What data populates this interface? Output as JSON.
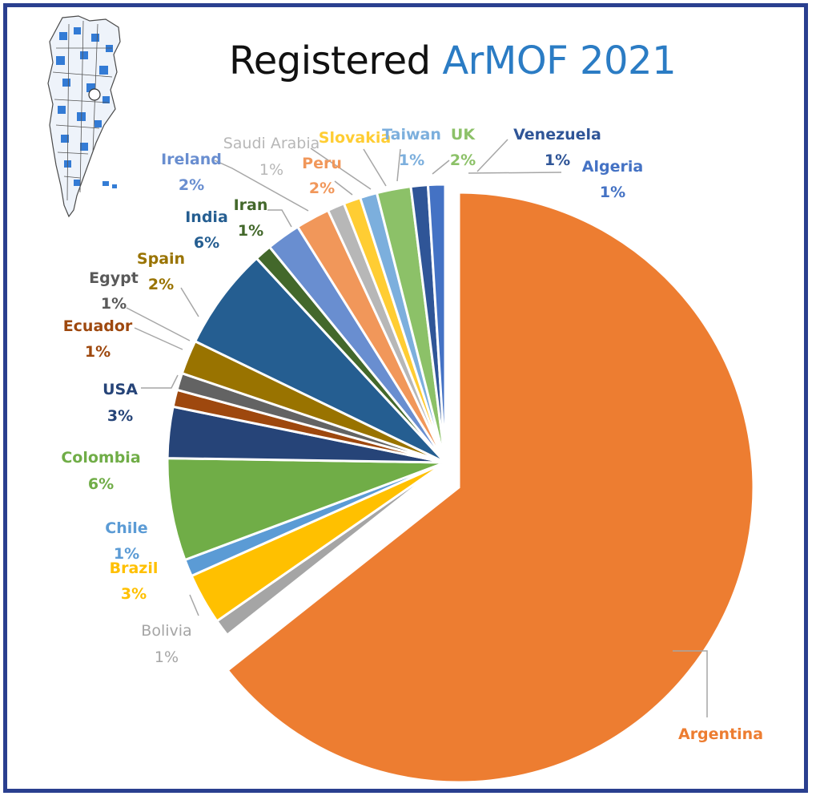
{
  "title": {
    "part1": "Registered",
    "part2": "ArMOF 2021"
  },
  "colors": {
    "frame": "#2a3f8f",
    "title_dark": "#111111",
    "title_accent": "#2b7cc4"
  },
  "logo": {
    "icon": "argentina-map-mof-structure-icon"
  },
  "chart_data": {
    "type": "pie",
    "title": "Registered ArMOF 2021",
    "exploded": "Argentina",
    "slices": [
      {
        "label": "Argentina",
        "value": 65,
        "pct_text": "",
        "color": "#ed7d31"
      },
      {
        "label": "Bolivia",
        "value": 1,
        "pct_text": "1%",
        "color": "#a5a5a5"
      },
      {
        "label": "Brazil",
        "value": 3,
        "pct_text": "3%",
        "color": "#ffc000"
      },
      {
        "label": "Chile",
        "value": 1,
        "pct_text": "1%",
        "color": "#5b9bd5"
      },
      {
        "label": "Colombia",
        "value": 6,
        "pct_text": "6%",
        "color": "#70ad47"
      },
      {
        "label": "USA",
        "value": 3,
        "pct_text": "3%",
        "color": "#264478"
      },
      {
        "label": "Ecuador",
        "value": 1,
        "pct_text": "1%",
        "color": "#9e480e"
      },
      {
        "label": "Egypt",
        "value": 1,
        "pct_text": "1%",
        "color": "#636363"
      },
      {
        "label": "Spain",
        "value": 2,
        "pct_text": "2%",
        "color": "#997300"
      },
      {
        "label": "India",
        "value": 6,
        "pct_text": "6%",
        "color": "#255e91"
      },
      {
        "label": "Iran",
        "value": 1,
        "pct_text": "1%",
        "color": "#43682b"
      },
      {
        "label": "Ireland",
        "value": 2,
        "pct_text": "2%",
        "color": "#698ed0"
      },
      {
        "label": "Peru",
        "value": 2,
        "pct_text": "2%",
        "color": "#f1975a"
      },
      {
        "label": "Saudi Arabia",
        "value": 1,
        "pct_text": "1%",
        "color": "#b7b7b7"
      },
      {
        "label": "Slovakia",
        "value": 1,
        "pct_text": "",
        "color": "#ffcd33"
      },
      {
        "label": "Taiwan",
        "value": 1,
        "pct_text": "1%",
        "color": "#7cafdd"
      },
      {
        "label": "UK",
        "value": 2,
        "pct_text": "2%",
        "color": "#8cc168"
      },
      {
        "label": "Venezuela",
        "value": 1,
        "pct_text": "1%",
        "color": "#2f5597"
      },
      {
        "label": "Algeria",
        "value": 1,
        "pct_text": "1%",
        "color": "#4472c4"
      }
    ]
  }
}
